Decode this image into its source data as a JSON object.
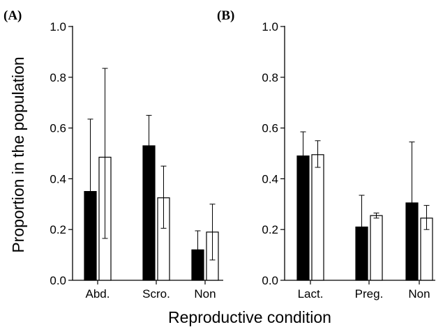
{
  "chart_data": [
    {
      "type": "bar",
      "panel_label": "(A)",
      "categories": [
        "Abd.",
        "Scro.",
        "Non"
      ],
      "series": [
        {
          "style": "filled",
          "color": "#000000",
          "values": [
            0.35,
            0.53,
            0.12
          ],
          "error_low": [
            0.08,
            0.415,
            0.045
          ],
          "error_high": [
            0.635,
            0.65,
            0.195
          ]
        },
        {
          "style": "open",
          "color": "#ffffff",
          "values": [
            0.485,
            0.325,
            0.19
          ],
          "error_low": [
            0.165,
            0.205,
            0.08
          ],
          "error_high": [
            0.835,
            0.45,
            0.3
          ]
        }
      ],
      "ylabel": "Proportion in the population",
      "ylim": [
        0,
        1.0
      ],
      "yticks": [
        "0.0",
        "0.2",
        "0.4",
        "0.6",
        "0.8",
        "1.0"
      ],
      "grid": false
    },
    {
      "type": "bar",
      "panel_label": "(B)",
      "categories": [
        "Lact.",
        "Preg.",
        "Non"
      ],
      "series": [
        {
          "style": "filled",
          "color": "#000000",
          "values": [
            0.49,
            0.21,
            0.305
          ],
          "error_low": [
            0.395,
            0.085,
            0.07
          ],
          "error_high": [
            0.585,
            0.335,
            0.545
          ]
        },
        {
          "style": "open",
          "color": "#ffffff",
          "values": [
            0.495,
            0.255,
            0.245
          ],
          "error_low": [
            0.445,
            0.245,
            0.2
          ],
          "error_high": [
            0.55,
            0.265,
            0.295
          ]
        }
      ],
      "ylim": [
        0,
        1.0
      ],
      "yticks": [
        "0.0",
        "0.2",
        "0.4",
        "0.6",
        "0.8",
        "1.0"
      ],
      "grid": false
    }
  ],
  "xlabel": "Reproductive condition"
}
